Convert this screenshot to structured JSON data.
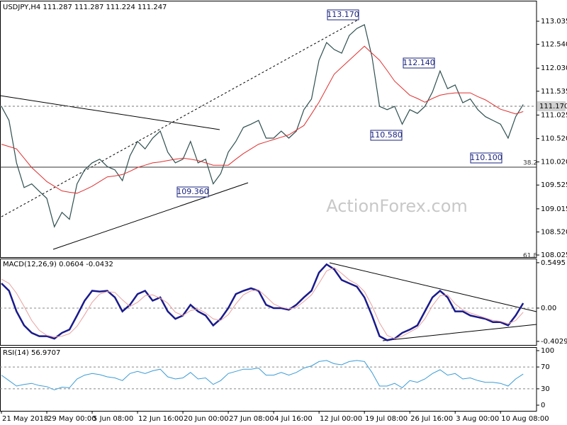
{
  "chart_data": [
    {
      "type": "line",
      "title": "USDJPY,H4  111.287 111.287 111.224 111.247",
      "ylim": [
        107.98,
        113.46
      ],
      "yticks": [
        113.035,
        {
          "value": 112.54,
          "label": "112.540"
        },
        {
          "value": 112.03,
          "label": "112.030"
        },
        111.535,
        111.025,
        {
          "value": 110.52,
          "label": "110.520"
        },
        {
          "value": 110.02,
          "label": "110.020"
        },
        109.525,
        109.015,
        {
          "value": 108.52,
          "label": "108.520"
        },
        108.025
      ],
      "series": [
        {
          "color": "#2f4f4f",
          "values": [
            111.21,
            110.91,
            110.0,
            109.47,
            109.55,
            109.39,
            109.24,
            108.63,
            108.94,
            108.79,
            109.55,
            109.85,
            110.0,
            110.08,
            109.92,
            109.85,
            109.62,
            110.15,
            110.46,
            110.3,
            110.53,
            110.68,
            110.23,
            110.0,
            110.08,
            110.46,
            110.0,
            110.08,
            109.55,
            109.77,
            110.23,
            110.46,
            110.76,
            110.83,
            110.91,
            110.53,
            110.53,
            110.68,
            110.53,
            110.68,
            111.14,
            111.37,
            112.2,
            112.58,
            112.43,
            112.35,
            112.73,
            112.88,
            112.96,
            112.28,
            111.21,
            111.14,
            111.21,
            110.83,
            111.14,
            111.06,
            111.21,
            111.52,
            111.97,
            111.59,
            111.67,
            111.29,
            111.37,
            111.14,
            110.99,
            110.91,
            110.83,
            110.53,
            110.99,
            111.25
          ]
        },
        {
          "color": "#e03030",
          "values": [
            110.4,
            110.35,
            110.3,
            110.1,
            109.9,
            109.75,
            109.6,
            109.5,
            109.4,
            109.37,
            109.35,
            109.42,
            109.5,
            109.6,
            109.7,
            109.72,
            109.75,
            109.82,
            109.9,
            109.95,
            110.0,
            110.02,
            110.05,
            110.08,
            110.1,
            110.08,
            110.05,
            110.0,
            109.95,
            109.95,
            109.95,
            110.08,
            110.2,
            110.3,
            110.4,
            110.45,
            110.5,
            110.55,
            110.6,
            110.7,
            110.8,
            111.05,
            111.3,
            111.6,
            111.9,
            112.05,
            112.2,
            112.35,
            112.5,
            112.35,
            112.2,
            111.98,
            111.75,
            111.6,
            111.45,
            111.38,
            111.3,
            111.38,
            111.45,
            111.48,
            111.5,
            111.5,
            111.5,
            111.42,
            111.35,
            111.25,
            111.15,
            111.1,
            111.05,
            111.1
          ]
        }
      ],
      "annotations": [
        "113.170",
        "112.140",
        "110.580",
        "109.360",
        "110.100"
      ],
      "price_label": "111.170",
      "fib_labels": [
        "38.2",
        "61.8"
      ],
      "watermark": "ActionForex.com"
    },
    {
      "type": "line",
      "title": "MACD(12,26,9) 0.0604 -0.0432",
      "ylim": [
        -0.455,
        0.6
      ],
      "yticks": [
        0.5495,
        {
          "value": 0,
          "label": "0.00"
        },
        -0.4029
      ],
      "levels": [
        0
      ],
      "series": [
        {
          "color": "#1a1a8c",
          "values": [
            0.3,
            0.21,
            -0.04,
            -0.21,
            -0.3,
            -0.34,
            -0.34,
            -0.37,
            -0.3,
            -0.26,
            -0.09,
            0.09,
            0.21,
            0.2,
            0.21,
            0.13,
            -0.04,
            0.04,
            0.17,
            0.21,
            0.09,
            0.13,
            -0.04,
            -0.13,
            -0.09,
            0.04,
            -0.04,
            -0.09,
            -0.21,
            -0.13,
            0,
            0.17,
            0.21,
            0.24,
            0.21,
            0.04,
            0,
            0,
            -0.02,
            0.04,
            0.13,
            0.21,
            0.43,
            0.53,
            0.47,
            0.34,
            0.3,
            0.26,
            0.13,
            -0.09,
            -0.34,
            -0.39,
            -0.37,
            -0.3,
            -0.26,
            -0.21,
            -0.04,
            0.13,
            0.21,
            0.13,
            -0.04,
            -0.04,
            -0.09,
            -0.11,
            -0.13,
            -0.17,
            -0.17,
            -0.21,
            -0.09,
            0.06
          ]
        },
        {
          "color": "#e8a0a0",
          "values": [
            0.35,
            0.3,
            0.18,
            0.02,
            -0.15,
            -0.27,
            -0.33,
            -0.35,
            -0.34,
            -0.31,
            -0.22,
            -0.08,
            0.07,
            0.17,
            0.2,
            0.19,
            0.1,
            0.02,
            0.07,
            0.15,
            0.16,
            0.12,
            0.06,
            -0.05,
            -0.09,
            -0.03,
            -0.01,
            -0.06,
            -0.13,
            -0.15,
            -0.08,
            0.05,
            0.16,
            0.21,
            0.22,
            0.14,
            0.05,
            0.01,
            -0.01,
            0.01,
            0.08,
            0.16,
            0.3,
            0.45,
            0.49,
            0.42,
            0.34,
            0.29,
            0.2,
            0.03,
            -0.18,
            -0.33,
            -0.37,
            -0.34,
            -0.29,
            -0.24,
            -0.13,
            0.03,
            0.15,
            0.16,
            0.05,
            -0.02,
            -0.06,
            -0.09,
            -0.12,
            -0.15,
            -0.16,
            -0.19,
            -0.15,
            -0.05
          ]
        }
      ]
    },
    {
      "type": "line",
      "title": "RSI(14) 56.9707",
      "ylim": [
        -10.4,
        106.5
      ],
      "yticks": [
        100,
        70,
        30,
        0
      ],
      "levels": [
        70,
        30
      ],
      "categories": [
        "21 May 2018",
        null,
        null,
        null,
        null,
        null,
        "29 May 00:00",
        null,
        null,
        null,
        null,
        null,
        "5 Jun 08:00",
        null,
        null,
        null,
        null,
        null,
        "12 Jun 16:00",
        null,
        null,
        null,
        null,
        null,
        "20 Jun 00:00",
        null,
        null,
        null,
        null,
        null,
        "27 Jun 08:00",
        null,
        null,
        null,
        null,
        null,
        "4 Jul 16:00",
        null,
        null,
        null,
        null,
        null,
        "12 Jul 00:00",
        null,
        null,
        null,
        null,
        null,
        "19 Jul 08:00",
        null,
        null,
        null,
        null,
        null,
        "26 Jul 16:00",
        null,
        null,
        null,
        null,
        null,
        "3 Aug 00:00",
        null,
        null,
        null,
        null,
        null,
        "10 Aug 08:00",
        null,
        null,
        null
      ],
      "series": [
        {
          "color": "#3b9bd6",
          "values": [
            55,
            45,
            35,
            38,
            40,
            36,
            34,
            28,
            33,
            32,
            48,
            55,
            58,
            56,
            52,
            50,
            45,
            58,
            62,
            58,
            63,
            66,
            52,
            48,
            50,
            60,
            48,
            50,
            38,
            45,
            58,
            62,
            66,
            66,
            68,
            55,
            55,
            60,
            55,
            60,
            68,
            72,
            80,
            82,
            76,
            74,
            80,
            82,
            80,
            60,
            35,
            35,
            40,
            32,
            45,
            42,
            48,
            58,
            65,
            55,
            58,
            48,
            50,
            45,
            42,
            42,
            40,
            35,
            48,
            57
          ]
        }
      ]
    }
  ]
}
